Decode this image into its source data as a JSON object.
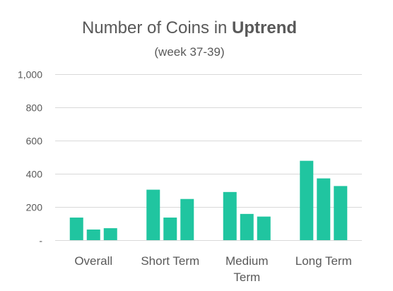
{
  "chart_data": {
    "type": "bar",
    "title_prefix": "Number of Coins in ",
    "title_emphasis": "Uptrend",
    "subtitle": "(week 37-39)",
    "categories": [
      [
        "Overall"
      ],
      [
        "Short Term"
      ],
      [
        "Medium",
        "Term"
      ],
      [
        "Long Term"
      ]
    ],
    "series": [
      {
        "values": [
          136,
          304,
          290,
          478
        ]
      },
      {
        "values": [
          64,
          136,
          158,
          372
        ]
      },
      {
        "values": [
          72,
          248,
          142,
          326
        ]
      }
    ],
    "ylim": [
      0,
      1000
    ],
    "yticks": [
      0,
      200,
      400,
      600,
      800,
      1000
    ],
    "ytick_labels": [
      "-",
      "200",
      "400",
      "600",
      "800",
      "1,000"
    ],
    "grid": true,
    "bar_color": "#20c5a0",
    "grid_color": "#d9d9d9",
    "text_color": "#595959"
  }
}
